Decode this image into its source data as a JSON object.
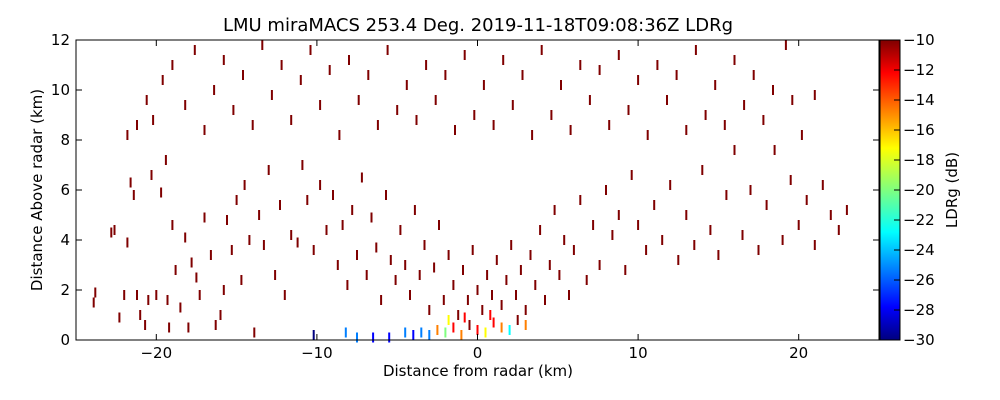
{
  "chart_data": {
    "type": "scatter",
    "title": "LMU miraMACS 253.4 Deg. 2019-11-18T09:08:36Z  LDRg",
    "xlabel": "Distance from radar (km)",
    "ylabel": "Distance Above radar  (km)",
    "xlim": [
      -25,
      25
    ],
    "ylim": [
      0,
      12
    ],
    "x_ticks": [
      -20,
      -10,
      0,
      10,
      20
    ],
    "y_ticks": [
      0,
      2,
      4,
      6,
      8,
      10,
      12
    ],
    "grid": false,
    "colorbar": {
      "label": "LDRg (dB)",
      "range": [
        -30,
        -10
      ],
      "ticks": [
        -10,
        -12,
        -14,
        -16,
        -18,
        -20,
        -22,
        -24,
        -26,
        -28,
        -30
      ],
      "colormap": [
        "#00007f",
        "#0000ff",
        "#007fff",
        "#00ffff",
        "#7fff7f",
        "#ffff00",
        "#ff7f00",
        "#ff0000",
        "#7f0000"
      ]
    },
    "series": [
      {
        "values_note": "",
        "points": [
          [
            -23.9,
            1.5,
            -10
          ],
          [
            -23.8,
            1.9,
            -10
          ],
          [
            -22.8,
            4.3,
            -10
          ],
          [
            -22.6,
            4.4,
            -10
          ],
          [
            -22.3,
            0.9,
            -10
          ],
          [
            -22.0,
            1.8,
            -10
          ],
          [
            -21.8,
            3.9,
            -10
          ],
          [
            -21.6,
            6.3,
            -10
          ],
          [
            -21.4,
            5.8,
            -10
          ],
          [
            -21.2,
            1.8,
            -10
          ],
          [
            -21.0,
            1.0,
            -10
          ],
          [
            -20.7,
            0.6,
            -10
          ],
          [
            -20.5,
            1.6,
            -10
          ],
          [
            -20.3,
            6.6,
            -10
          ],
          [
            -20.0,
            1.8,
            -10
          ],
          [
            -19.7,
            5.9,
            -10
          ],
          [
            -19.4,
            7.2,
            -10
          ],
          [
            -19.0,
            4.6,
            -10
          ],
          [
            -19.3,
            1.6,
            -10
          ],
          [
            -19.2,
            0.5,
            -10
          ],
          [
            -18.8,
            2.8,
            -10
          ],
          [
            -18.5,
            1.3,
            -10
          ],
          [
            -18.2,
            4.1,
            -10
          ],
          [
            -18.0,
            0.5,
            -10
          ],
          [
            -17.8,
            3.1,
            -10
          ],
          [
            -17.5,
            2.5,
            -10
          ],
          [
            -17.3,
            1.8,
            -10
          ],
          [
            -17.0,
            4.9,
            -10
          ],
          [
            -16.6,
            3.4,
            -10
          ],
          [
            -16.3,
            0.6,
            -10
          ],
          [
            -16.0,
            1.0,
            -10
          ],
          [
            -15.8,
            2.0,
            -10
          ],
          [
            -15.6,
            4.8,
            -10
          ],
          [
            -15.3,
            3.6,
            -10
          ],
          [
            -15.0,
            5.6,
            -10
          ],
          [
            -14.7,
            2.4,
            -10
          ],
          [
            -14.5,
            6.2,
            -10
          ],
          [
            -14.2,
            4.0,
            -10
          ],
          [
            -13.9,
            0.3,
            -10
          ],
          [
            -13.6,
            5.0,
            -10
          ],
          [
            -13.3,
            3.8,
            -10
          ],
          [
            -13.0,
            6.8,
            -10
          ],
          [
            -12.6,
            2.6,
            -10
          ],
          [
            -12.3,
            5.4,
            -10
          ],
          [
            -12.0,
            1.8,
            -10
          ],
          [
            -11.6,
            4.2,
            -10
          ],
          [
            -11.2,
            3.9,
            -10
          ],
          [
            -10.9,
            7.0,
            -10
          ],
          [
            -10.6,
            5.6,
            -10
          ],
          [
            -10.2,
            3.6,
            -10
          ],
          [
            -9.8,
            6.2,
            -10
          ],
          [
            -9.4,
            4.4,
            -10
          ],
          [
            -9.0,
            5.8,
            -10
          ],
          [
            -8.7,
            3.0,
            -10
          ],
          [
            -8.4,
            4.6,
            -10
          ],
          [
            -8.1,
            2.2,
            -10
          ],
          [
            -7.8,
            5.2,
            -10
          ],
          [
            -7.5,
            3.4,
            -10
          ],
          [
            -7.2,
            6.5,
            -10
          ],
          [
            -6.9,
            2.6,
            -10
          ],
          [
            -6.6,
            4.9,
            -10
          ],
          [
            -6.3,
            3.7,
            -10
          ],
          [
            -6.0,
            1.6,
            -10
          ],
          [
            -5.7,
            5.8,
            -10
          ],
          [
            -5.4,
            3.2,
            -10
          ],
          [
            -5.1,
            2.4,
            -10
          ],
          [
            -4.8,
            4.4,
            -10
          ],
          [
            -4.5,
            3.0,
            -10
          ],
          [
            -4.2,
            1.8,
            -10
          ],
          [
            -3.9,
            5.2,
            -10
          ],
          [
            -3.6,
            2.6,
            -10
          ],
          [
            -3.3,
            3.8,
            -10
          ],
          [
            -3.0,
            1.2,
            -10
          ],
          [
            -2.7,
            2.9,
            -10
          ],
          [
            -2.4,
            4.6,
            -10
          ],
          [
            -2.1,
            1.6,
            -10
          ],
          [
            -1.8,
            3.4,
            -10
          ],
          [
            -1.5,
            2.2,
            -10
          ],
          [
            -1.2,
            1.0,
            -10
          ],
          [
            -0.9,
            2.8,
            -10
          ],
          [
            -0.6,
            1.6,
            -10
          ],
          [
            -0.3,
            3.6,
            -10
          ],
          [
            0.0,
            2.0,
            -10
          ],
          [
            0.3,
            1.2,
            -10
          ],
          [
            0.6,
            2.6,
            -10
          ],
          [
            0.9,
            1.8,
            -10
          ],
          [
            1.2,
            3.2,
            -10
          ],
          [
            1.5,
            1.4,
            -10
          ],
          [
            1.8,
            2.4,
            -10
          ],
          [
            2.1,
            3.8,
            -10
          ],
          [
            2.4,
            1.8,
            -10
          ],
          [
            2.7,
            2.8,
            -10
          ],
          [
            3.0,
            1.2,
            -10
          ],
          [
            3.3,
            3.4,
            -10
          ],
          [
            3.6,
            2.2,
            -10
          ],
          [
            3.9,
            4.4,
            -10
          ],
          [
            4.2,
            1.6,
            -10
          ],
          [
            4.5,
            3.0,
            -10
          ],
          [
            4.8,
            5.2,
            -10
          ],
          [
            5.1,
            2.6,
            -10
          ],
          [
            5.4,
            4.0,
            -10
          ],
          [
            5.7,
            1.8,
            -10
          ],
          [
            6.0,
            3.6,
            -10
          ],
          [
            6.4,
            5.6,
            -10
          ],
          [
            6.8,
            2.4,
            -10
          ],
          [
            7.2,
            4.6,
            -10
          ],
          [
            7.6,
            3.0,
            -10
          ],
          [
            8.0,
            6.0,
            -10
          ],
          [
            8.4,
            4.2,
            -10
          ],
          [
            8.8,
            5.0,
            -10
          ],
          [
            9.2,
            2.8,
            -10
          ],
          [
            9.6,
            6.6,
            -10
          ],
          [
            10.0,
            4.6,
            -10
          ],
          [
            10.5,
            3.6,
            -10
          ],
          [
            11.0,
            5.4,
            -10
          ],
          [
            11.5,
            4.0,
            -10
          ],
          [
            12.0,
            6.2,
            -10
          ],
          [
            12.5,
            3.2,
            -10
          ],
          [
            13.0,
            5.0,
            -10
          ],
          [
            13.5,
            3.8,
            -10
          ],
          [
            14.0,
            6.8,
            -10
          ],
          [
            14.5,
            4.4,
            -10
          ],
          [
            15.0,
            3.4,
            -10
          ],
          [
            15.5,
            5.8,
            -10
          ],
          [
            16.0,
            7.6,
            -10
          ],
          [
            16.5,
            4.2,
            -10
          ],
          [
            17.0,
            6.0,
            -10
          ],
          [
            17.5,
            3.6,
            -10
          ],
          [
            18.0,
            5.4,
            -10
          ],
          [
            18.5,
            7.6,
            -10
          ],
          [
            19.0,
            4.0,
            -10
          ],
          [
            19.5,
            6.4,
            -10
          ],
          [
            20.0,
            4.6,
            -10
          ],
          [
            20.5,
            5.6,
            -10
          ],
          [
            21.0,
            3.8,
            -10
          ],
          [
            21.5,
            6.2,
            -10
          ],
          [
            22.0,
            5.0,
            -10
          ],
          [
            22.5,
            4.4,
            -10
          ],
          [
            23.0,
            5.2,
            -10
          ],
          [
            -21.8,
            8.2,
            -10
          ],
          [
            -21.2,
            8.6,
            -10
          ],
          [
            -20.6,
            9.6,
            -10
          ],
          [
            -20.2,
            8.8,
            -10
          ],
          [
            -19.6,
            10.4,
            -10
          ],
          [
            -19.0,
            11.0,
            -10
          ],
          [
            -18.2,
            9.4,
            -10
          ],
          [
            -17.6,
            11.6,
            -10
          ],
          [
            -17.0,
            8.4,
            -10
          ],
          [
            -16.4,
            10.0,
            -10
          ],
          [
            -15.8,
            11.2,
            -10
          ],
          [
            -15.2,
            9.2,
            -10
          ],
          [
            -14.6,
            10.6,
            -10
          ],
          [
            -14.0,
            8.6,
            -10
          ],
          [
            -13.4,
            11.8,
            -10
          ],
          [
            -12.8,
            9.8,
            -10
          ],
          [
            -12.2,
            11.0,
            -10
          ],
          [
            -11.6,
            8.8,
            -10
          ],
          [
            -11.0,
            10.4,
            -10
          ],
          [
            -10.4,
            11.6,
            -10
          ],
          [
            -9.8,
            9.4,
            -10
          ],
          [
            -9.2,
            10.8,
            -10
          ],
          [
            -8.6,
            8.2,
            -10
          ],
          [
            -8.0,
            11.2,
            -10
          ],
          [
            -7.4,
            9.6,
            -10
          ],
          [
            -6.8,
            10.6,
            -10
          ],
          [
            -6.2,
            8.6,
            -10
          ],
          [
            -5.6,
            11.6,
            -10
          ],
          [
            -5.0,
            9.2,
            -10
          ],
          [
            -4.4,
            10.2,
            -10
          ],
          [
            -3.8,
            8.8,
            -10
          ],
          [
            -3.2,
            11.0,
            -10
          ],
          [
            -2.6,
            9.6,
            -10
          ],
          [
            -2.0,
            10.6,
            -10
          ],
          [
            -1.4,
            8.4,
            -10
          ],
          [
            -0.8,
            11.4,
            -10
          ],
          [
            -0.2,
            9.0,
            -10
          ],
          [
            0.4,
            10.2,
            -10
          ],
          [
            1.0,
            8.6,
            -10
          ],
          [
            1.6,
            11.2,
            -10
          ],
          [
            2.2,
            9.4,
            -10
          ],
          [
            2.8,
            10.6,
            -10
          ],
          [
            3.4,
            8.2,
            -10
          ],
          [
            4.0,
            11.6,
            -10
          ],
          [
            4.6,
            9.0,
            -10
          ],
          [
            5.2,
            10.2,
            -10
          ],
          [
            5.8,
            8.4,
            -10
          ],
          [
            6.4,
            11.0,
            -10
          ],
          [
            7.0,
            9.6,
            -10
          ],
          [
            7.6,
            10.8,
            -10
          ],
          [
            8.2,
            8.6,
            -10
          ],
          [
            8.8,
            11.4,
            -10
          ],
          [
            9.4,
            9.2,
            -10
          ],
          [
            10.0,
            10.4,
            -10
          ],
          [
            10.6,
            8.2,
            -10
          ],
          [
            11.2,
            11.0,
            -10
          ],
          [
            11.8,
            9.6,
            -10
          ],
          [
            12.4,
            10.6,
            -10
          ],
          [
            13.0,
            8.4,
            -10
          ],
          [
            13.6,
            11.6,
            -10
          ],
          [
            14.2,
            9.0,
            -10
          ],
          [
            14.8,
            10.2,
            -10
          ],
          [
            15.4,
            8.6,
            -10
          ],
          [
            16.0,
            11.2,
            -10
          ],
          [
            16.6,
            9.4,
            -10
          ],
          [
            17.2,
            10.6,
            -10
          ],
          [
            17.8,
            8.8,
            -10
          ],
          [
            18.4,
            10.0,
            -10
          ],
          [
            19.2,
            11.8,
            -10
          ],
          [
            19.6,
            9.6,
            -10
          ],
          [
            20.2,
            8.2,
            -10
          ],
          [
            21.0,
            9.8,
            -10
          ],
          [
            -4.0,
            0.2,
            -28
          ],
          [
            -3.5,
            0.3,
            -26
          ],
          [
            -3.0,
            0.2,
            -24
          ],
          [
            -2.5,
            0.4,
            -14
          ],
          [
            -2.0,
            0.3,
            -20
          ],
          [
            -1.5,
            0.5,
            -12
          ],
          [
            -1.0,
            0.2,
            -16
          ],
          [
            -0.5,
            0.6,
            -11
          ],
          [
            0.0,
            0.4,
            -13
          ],
          [
            0.5,
            0.3,
            -18
          ],
          [
            1.0,
            0.7,
            -12
          ],
          [
            1.5,
            0.5,
            -15
          ],
          [
            2.0,
            0.4,
            -22
          ],
          [
            2.5,
            0.8,
            -11
          ],
          [
            3.0,
            0.6,
            -14
          ],
          [
            -5.5,
            0.1,
            -28
          ],
          [
            -6.5,
            0.1,
            -27
          ],
          [
            -7.5,
            0.1,
            -25
          ],
          [
            -8.2,
            0.3,
            -24
          ],
          [
            -10.2,
            0.2,
            -29
          ],
          [
            -4.5,
            0.3,
            -24
          ],
          [
            -1.8,
            0.8,
            -17
          ],
          [
            -0.8,
            0.9,
            -12
          ],
          [
            0.8,
            1.0,
            -12
          ]
        ]
      }
    ]
  }
}
